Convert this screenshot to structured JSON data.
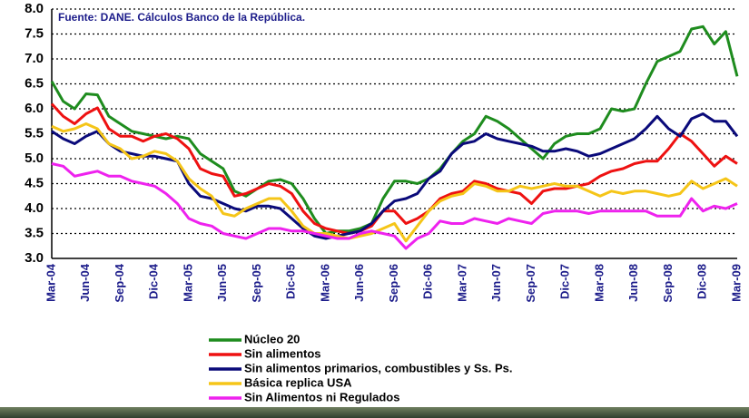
{
  "chart_data": {
    "type": "line",
    "annotation": "Fuente: DANE. Cálculos Banco de la República.",
    "categories": [
      "Mar-04",
      null,
      null,
      "Jun-04",
      null,
      null,
      "Sep-04",
      null,
      null,
      "Dic-04",
      null,
      null,
      "Mar-05",
      null,
      null,
      "Jun-05",
      null,
      null,
      "Sep-05",
      null,
      null,
      "Dic-05",
      null,
      null,
      "Mar-06",
      null,
      null,
      "Jun-06",
      null,
      null,
      "Sep-06",
      null,
      null,
      "Dic-06",
      null,
      null,
      "Mar-07",
      null,
      null,
      "Jun-07",
      null,
      null,
      "Sep-07",
      null,
      null,
      "Dic-07",
      null,
      null,
      "Mar-08",
      null,
      null,
      "Jun-08",
      null,
      null,
      "Sep-08",
      null,
      null,
      "Dic-08",
      null,
      null,
      "Mar-09"
    ],
    "series": [
      {
        "name": "Núcleo 20",
        "color": "#1e8c1e",
        "values": [
          6.55,
          6.15,
          6.0,
          6.3,
          6.28,
          5.85,
          5.7,
          5.55,
          5.5,
          5.45,
          5.4,
          5.45,
          5.4,
          5.1,
          4.95,
          4.8,
          4.35,
          4.25,
          4.4,
          4.55,
          4.58,
          4.5,
          4.2,
          3.8,
          3.5,
          3.55,
          3.55,
          3.6,
          3.7,
          4.2,
          4.55,
          4.55,
          4.5,
          4.6,
          4.8,
          5.1,
          5.35,
          5.5,
          5.85,
          5.75,
          5.6,
          5.4,
          5.2,
          5.0,
          5.3,
          5.45,
          5.5,
          5.5,
          5.6,
          6.0,
          5.95,
          6.0,
          6.5,
          6.95,
          7.05,
          7.15,
          7.6,
          7.65,
          7.3,
          7.55,
          6.65
        ]
      },
      {
        "name": "Sin alimentos",
        "color": "#ee1111",
        "values": [
          6.1,
          5.85,
          5.7,
          5.9,
          6.02,
          5.6,
          5.45,
          5.45,
          5.35,
          5.45,
          5.5,
          5.4,
          5.2,
          4.8,
          4.7,
          4.65,
          4.25,
          4.3,
          4.4,
          4.5,
          4.45,
          4.3,
          3.95,
          3.7,
          3.6,
          3.55,
          3.5,
          3.55,
          3.65,
          3.95,
          3.95,
          3.7,
          3.8,
          3.95,
          4.2,
          4.3,
          4.35,
          4.55,
          4.5,
          4.4,
          4.35,
          4.3,
          4.1,
          4.35,
          4.4,
          4.4,
          4.45,
          4.5,
          4.65,
          4.75,
          4.8,
          4.9,
          4.95,
          4.95,
          5.2,
          5.5,
          5.35,
          5.1,
          4.85,
          5.05,
          4.9
        ]
      },
      {
        "name": "Sin alimentos primarios, combustibles y Ss. Ps.",
        "color": "#0a0a7a",
        "values": [
          5.55,
          5.4,
          5.3,
          5.45,
          5.55,
          5.3,
          5.15,
          5.1,
          5.05,
          5.05,
          5.0,
          4.95,
          4.5,
          4.25,
          4.2,
          4.1,
          4.0,
          3.95,
          4.05,
          4.05,
          4.0,
          3.8,
          3.6,
          3.45,
          3.4,
          3.45,
          3.5,
          3.55,
          3.7,
          3.95,
          4.15,
          4.2,
          4.3,
          4.6,
          4.75,
          5.1,
          5.3,
          5.35,
          5.5,
          5.4,
          5.35,
          5.3,
          5.25,
          5.15,
          5.15,
          5.2,
          5.15,
          5.05,
          5.1,
          5.2,
          5.3,
          5.4,
          5.6,
          5.85,
          5.6,
          5.45,
          5.8,
          5.9,
          5.75,
          5.75,
          5.45
        ]
      },
      {
        "name": "Básica replica USA",
        "color": "#f5c518",
        "values": [
          5.65,
          5.55,
          5.6,
          5.7,
          5.6,
          5.3,
          5.2,
          5.0,
          5.05,
          5.15,
          5.1,
          4.95,
          4.6,
          4.4,
          4.25,
          3.9,
          3.85,
          4.0,
          4.1,
          4.2,
          4.2,
          3.95,
          3.65,
          3.5,
          3.5,
          3.45,
          3.4,
          3.45,
          3.5,
          3.6,
          3.7,
          3.35,
          3.65,
          3.95,
          4.15,
          4.25,
          4.3,
          4.5,
          4.45,
          4.35,
          4.35,
          4.45,
          4.4,
          4.45,
          4.5,
          4.45,
          4.45,
          4.35,
          4.25,
          4.35,
          4.3,
          4.35,
          4.35,
          4.3,
          4.25,
          4.3,
          4.55,
          4.4,
          4.5,
          4.6,
          4.45
        ]
      },
      {
        "name": "Sin Alimentos ni Regulados",
        "color": "#ee22ee",
        "values": [
          4.9,
          4.85,
          4.65,
          4.7,
          4.75,
          4.65,
          4.65,
          4.55,
          4.5,
          4.45,
          4.3,
          4.1,
          3.8,
          3.7,
          3.65,
          3.5,
          3.45,
          3.4,
          3.5,
          3.6,
          3.6,
          3.55,
          3.55,
          3.5,
          3.45,
          3.4,
          3.4,
          3.5,
          3.55,
          3.5,
          3.45,
          3.2,
          3.4,
          3.5,
          3.75,
          3.7,
          3.7,
          3.8,
          3.75,
          3.7,
          3.8,
          3.75,
          3.7,
          3.9,
          3.95,
          3.95,
          3.95,
          3.9,
          3.95,
          3.95,
          3.95,
          3.95,
          3.95,
          3.85,
          3.85,
          3.85,
          4.2,
          3.95,
          4.05,
          4.0,
          4.1
        ]
      }
    ],
    "ylim": [
      3.0,
      8.0
    ],
    "yticks": [
      {
        "value": 3.0,
        "label": "3.0"
      },
      {
        "value": 3.5,
        "label": "3.5"
      },
      {
        "value": 4.0,
        "label": "4.0"
      },
      {
        "value": 4.5,
        "label": "4.5"
      },
      {
        "value": 5.0,
        "label": "5.0"
      },
      {
        "value": 5.5,
        "label": "5.5"
      },
      {
        "value": 6.0,
        "label": "6.0"
      },
      {
        "value": 6.5,
        "label": "6.5"
      },
      {
        "value": 7.0,
        "label": "7.0"
      },
      {
        "value": 7.5,
        "label": "7.5"
      },
      {
        "value": 8.0,
        "label": "8.0"
      }
    ],
    "grid": true
  }
}
